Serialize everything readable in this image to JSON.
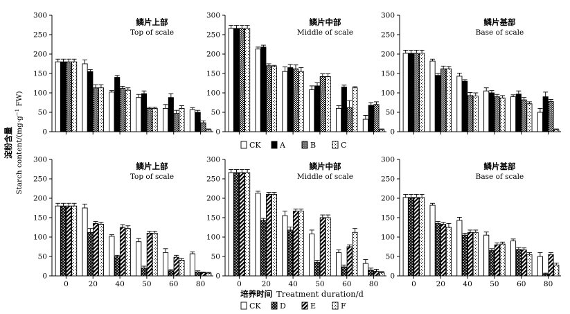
{
  "figure": {
    "ylabel_cn": "淀粉含量",
    "ylabel_en": "Starch content/(mg·g",
    "ylabel_unit_sup": "−1",
    "ylabel_unit_tail": " FW)",
    "xlabel_cn": "培养时间",
    "xlabel_en": "Treatment duration/d"
  },
  "legend_top": [
    {
      "key": "CK",
      "label": "CK"
    },
    {
      "key": "A",
      "label": "A"
    },
    {
      "key": "B",
      "label": "B"
    },
    {
      "key": "C",
      "label": "C"
    }
  ],
  "legend_bottom": [
    {
      "key": "CK",
      "label": "CK"
    },
    {
      "key": "D",
      "label": "D"
    },
    {
      "key": "E",
      "label": "E"
    },
    {
      "key": "F",
      "label": "F"
    }
  ],
  "chart_data": [
    {
      "type": "bar",
      "row": 0,
      "col": 0,
      "title_cn": "鳞片上部",
      "title_en": "Top of scale",
      "categories": [
        "0",
        "20",
        "40",
        "50",
        "60",
        "80"
      ],
      "ylim": [
        0,
        300
      ],
      "yticks": [
        0,
        50,
        100,
        150,
        200,
        250,
        300
      ],
      "show_x_ticklabels": false,
      "series": [
        {
          "name": "CK",
          "values": [
            180,
            175,
            102,
            88,
            60,
            57
          ],
          "errors": [
            7,
            10,
            4,
            8,
            10,
            5
          ]
        },
        {
          "name": "A",
          "values": [
            180,
            155,
            140,
            98,
            88,
            50
          ],
          "errors": [
            7,
            5,
            5,
            7,
            10,
            5
          ]
        },
        {
          "name": "B",
          "values": [
            180,
            113,
            112,
            60,
            47,
            23
          ],
          "errors": [
            7,
            8,
            5,
            3,
            8,
            5
          ]
        },
        {
          "name": "C",
          "values": [
            180,
            113,
            107,
            60,
            60,
            5
          ],
          "errors": [
            7,
            8,
            6,
            3,
            7,
            2
          ]
        }
      ]
    },
    {
      "type": "bar",
      "row": 0,
      "col": 1,
      "title_cn": "鳞片中部",
      "title_en": "Middle of scale",
      "categories": [
        "0",
        "20",
        "40",
        "50",
        "60",
        "80"
      ],
      "ylim": [
        0,
        300
      ],
      "yticks": [
        0,
        50,
        100,
        150,
        200,
        250,
        300
      ],
      "show_x_ticklabels": false,
      "series": [
        {
          "name": "CK",
          "values": [
            266,
            213,
            155,
            108,
            60,
            32
          ],
          "errors": [
            8,
            5,
            12,
            10,
            7,
            10
          ]
        },
        {
          "name": "A",
          "values": [
            266,
            218,
            165,
            118,
            115,
            68
          ],
          "errors": [
            8,
            5,
            8,
            8,
            5,
            7
          ]
        },
        {
          "name": "B",
          "values": [
            266,
            170,
            162,
            142,
            62,
            70
          ],
          "errors": [
            8,
            5,
            10,
            7,
            18,
            7
          ]
        },
        {
          "name": "C",
          "values": [
            266,
            168,
            155,
            142,
            113,
            5
          ],
          "errors": [
            8,
            3,
            10,
            7,
            3,
            2
          ]
        }
      ]
    },
    {
      "type": "bar",
      "row": 0,
      "col": 2,
      "title_cn": "鳞片基部",
      "title_en": "Base of scale",
      "categories": [
        "0",
        "20",
        "40",
        "50",
        "60",
        "80"
      ],
      "ylim": [
        0,
        300
      ],
      "yticks": [
        0,
        50,
        100,
        150,
        200,
        250,
        300
      ],
      "show_x_ticklabels": false,
      "series": [
        {
          "name": "CK",
          "values": [
            202,
            182,
            143,
            105,
            90,
            50
          ],
          "errors": [
            8,
            5,
            8,
            8,
            5,
            10
          ]
        },
        {
          "name": "A",
          "values": [
            202,
            145,
            130,
            100,
            97,
            90
          ],
          "errors": [
            8,
            5,
            4,
            6,
            8,
            12
          ]
        },
        {
          "name": "B",
          "values": [
            202,
            162,
            93,
            90,
            82,
            78
          ],
          "errors": [
            8,
            7,
            8,
            6,
            6,
            5
          ]
        },
        {
          "name": "C",
          "values": [
            202,
            162,
            92,
            87,
            72,
            5
          ],
          "errors": [
            8,
            6,
            8,
            6,
            5,
            2
          ]
        }
      ]
    },
    {
      "type": "bar",
      "row": 1,
      "col": 0,
      "title_cn": "鳞片上部",
      "title_en": "Top of scale",
      "categories": [
        "0",
        "20",
        "40",
        "50",
        "60",
        "80"
      ],
      "ylim": [
        0,
        300
      ],
      "yticks": [
        0,
        50,
        100,
        150,
        200,
        250,
        300
      ],
      "show_x_ticklabels": true,
      "series": [
        {
          "name": "CK",
          "values": [
            180,
            175,
            102,
            88,
            60,
            57
          ],
          "errors": [
            7,
            10,
            4,
            8,
            10,
            5
          ]
        },
        {
          "name": "D",
          "values": [
            180,
            112,
            50,
            20,
            13,
            10
          ],
          "errors": [
            7,
            10,
            3,
            5,
            3,
            3
          ]
        },
        {
          "name": "E",
          "values": [
            180,
            135,
            125,
            110,
            48,
            8
          ],
          "errors": [
            7,
            5,
            7,
            5,
            5,
            2
          ]
        },
        {
          "name": "F",
          "values": [
            180,
            133,
            122,
            110,
            40,
            7
          ],
          "errors": [
            7,
            5,
            7,
            5,
            5,
            2
          ]
        }
      ]
    },
    {
      "type": "bar",
      "row": 1,
      "col": 1,
      "title_cn": "鳞片中部",
      "title_en": "Middle of scale",
      "categories": [
        "0",
        "20",
        "40",
        "50",
        "60",
        "80"
      ],
      "ylim": [
        0,
        300
      ],
      "yticks": [
        0,
        50,
        100,
        150,
        200,
        250,
        300
      ],
      "show_x_ticklabels": true,
      "series": [
        {
          "name": "CK",
          "values": [
            266,
            213,
            155,
            108,
            60,
            32
          ],
          "errors": [
            8,
            5,
            12,
            10,
            7,
            10
          ]
        },
        {
          "name": "D",
          "values": [
            266,
            143,
            118,
            35,
            23,
            15
          ],
          "errors": [
            8,
            5,
            8,
            5,
            5,
            5
          ]
        },
        {
          "name": "E",
          "values": [
            266,
            210,
            167,
            150,
            75,
            12
          ],
          "errors": [
            8,
            5,
            5,
            7,
            5,
            5
          ]
        },
        {
          "name": "F",
          "values": [
            266,
            210,
            167,
            150,
            112,
            8
          ],
          "errors": [
            8,
            5,
            5,
            7,
            10,
            3
          ]
        }
      ]
    },
    {
      "type": "bar",
      "row": 1,
      "col": 2,
      "title_cn": "鳞片基部",
      "title_en": "Base of scale",
      "categories": [
        "0",
        "20",
        "40",
        "50",
        "60",
        "80"
      ],
      "ylim": [
        0,
        300
      ],
      "yticks": [
        0,
        50,
        100,
        150,
        200,
        250,
        300
      ],
      "show_x_ticklabels": true,
      "series": [
        {
          "name": "CK",
          "values": [
            202,
            182,
            143,
            105,
            90,
            50
          ],
          "errors": [
            8,
            5,
            8,
            8,
            5,
            10
          ]
        },
        {
          "name": "D",
          "values": [
            202,
            135,
            105,
            65,
            68,
            5
          ],
          "errors": [
            8,
            5,
            5,
            5,
            5,
            2
          ]
        },
        {
          "name": "E",
          "values": [
            202,
            133,
            112,
            80,
            67,
            55
          ],
          "errors": [
            8,
            5,
            6,
            5,
            5,
            5
          ]
        },
        {
          "name": "F",
          "values": [
            202,
            125,
            112,
            82,
            55,
            28
          ],
          "errors": [
            8,
            10,
            6,
            5,
            5,
            5
          ]
        }
      ]
    }
  ]
}
